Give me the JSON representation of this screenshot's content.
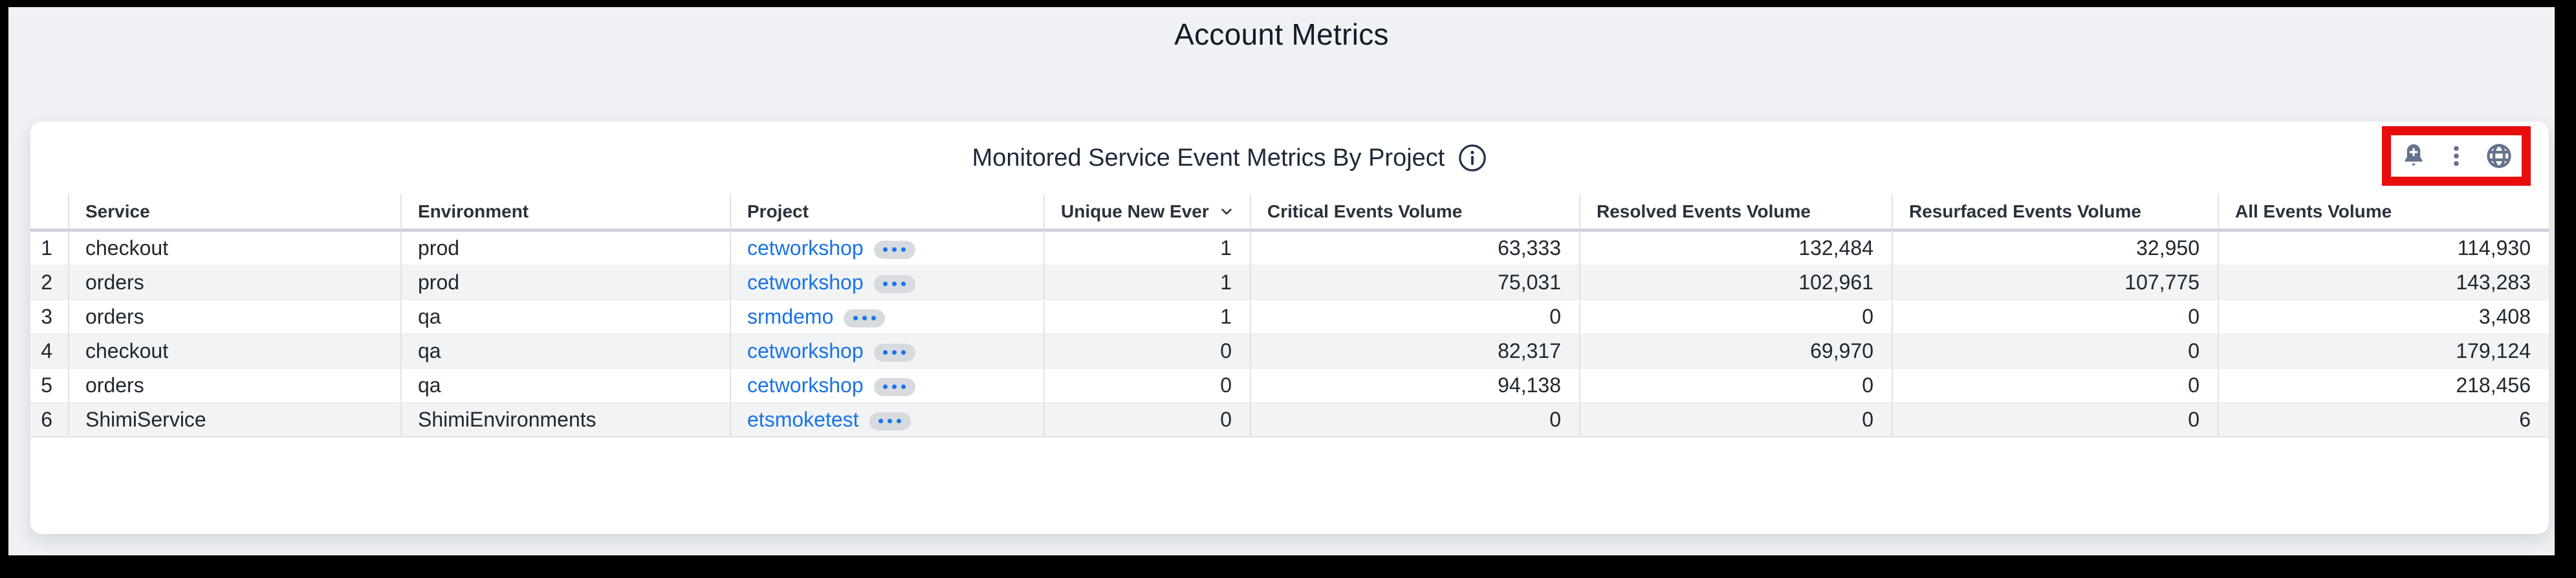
{
  "page": {
    "title": "Account Metrics"
  },
  "widget": {
    "title": "Monitored Service Event Metrics By Project",
    "info_icon": "info-icon",
    "actions": [
      {
        "name": "add-alert-button",
        "icon": "bell-plus-icon"
      },
      {
        "name": "more-options-button",
        "icon": "kebab-menu-icon"
      },
      {
        "name": "globe-button",
        "icon": "globe-icon"
      }
    ],
    "annotation": {
      "shape": "rectangle",
      "color": "#e80c0c"
    }
  },
  "colors": {
    "link": "#1a73e8",
    "icon": "#64748b",
    "annotation_red": "#e80c0c",
    "title_navy": "#1d2939"
  },
  "table": {
    "columns": [
      {
        "key": "index",
        "label": "",
        "align": "index"
      },
      {
        "key": "service",
        "label": "Service",
        "align": "text"
      },
      {
        "key": "environment",
        "label": "Environment",
        "align": "text"
      },
      {
        "key": "project",
        "label": "Project",
        "align": "text",
        "type": "link"
      },
      {
        "key": "unique",
        "label": "Unique New Ever",
        "align": "num",
        "sorted": "desc"
      },
      {
        "key": "critical",
        "label": "Critical Events Volume",
        "align": "num"
      },
      {
        "key": "resolved",
        "label": "Resolved Events Volume",
        "align": "num"
      },
      {
        "key": "resurfaced",
        "label": "Resurfaced Events Volume",
        "align": "num"
      },
      {
        "key": "all",
        "label": "All Events Volume",
        "align": "num"
      }
    ],
    "rows": [
      {
        "index": "1",
        "service": "checkout",
        "environment": "prod",
        "project": "cetworkshop",
        "unique": "1",
        "critical": "63,333",
        "resolved": "132,484",
        "resurfaced": "32,950",
        "all": "114,930"
      },
      {
        "index": "2",
        "service": "orders",
        "environment": "prod",
        "project": "cetworkshop",
        "unique": "1",
        "critical": "75,031",
        "resolved": "102,961",
        "resurfaced": "107,775",
        "all": "143,283"
      },
      {
        "index": "3",
        "service": "orders",
        "environment": "qa",
        "project": "srmdemo",
        "unique": "1",
        "critical": "0",
        "resolved": "0",
        "resurfaced": "0",
        "all": "3,408"
      },
      {
        "index": "4",
        "service": "checkout",
        "environment": "qa",
        "project": "cetworkshop",
        "unique": "0",
        "critical": "82,317",
        "resolved": "69,970",
        "resurfaced": "0",
        "all": "179,124"
      },
      {
        "index": "5",
        "service": "orders",
        "environment": "qa",
        "project": "cetworkshop",
        "unique": "0",
        "critical": "94,138",
        "resolved": "0",
        "resurfaced": "0",
        "all": "218,456"
      },
      {
        "index": "6",
        "service": "ShimiService",
        "environment": "ShimiEnvironments",
        "project": "etsmoketest",
        "unique": "0",
        "critical": "0",
        "resolved": "0",
        "resurfaced": "0",
        "all": "6"
      }
    ]
  }
}
